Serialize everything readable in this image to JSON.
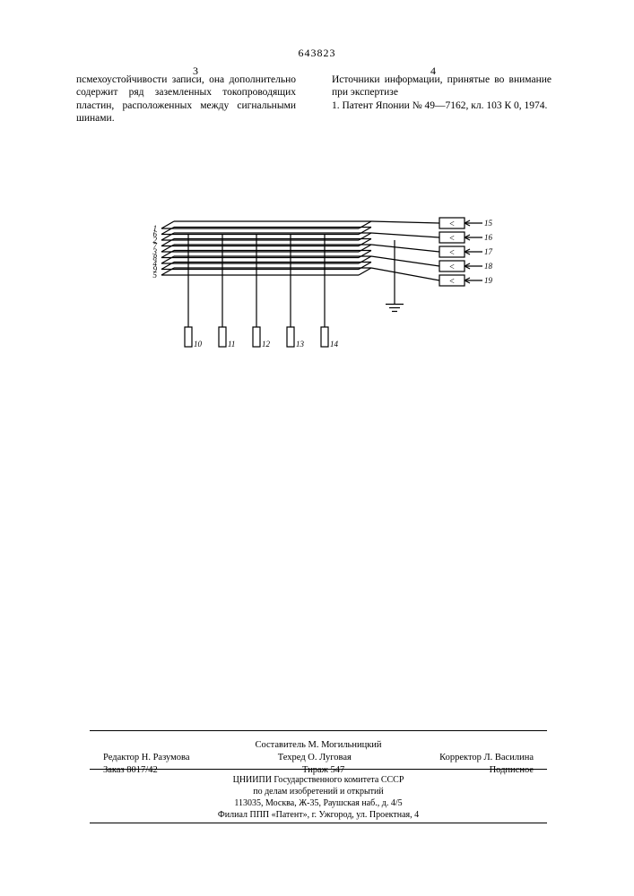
{
  "doc_number": "643823",
  "page_left": "3",
  "page_right": "4",
  "col_left": "псмехоустойчивости записи, она дополнительно содержит ряд заземленных токопроводящих пластин, расположенных между сигнальными шинами.",
  "col_right_hdr": "Источники информации, принятые во внимание при экспертизе",
  "col_right_ref": "1. Патент Японии № 49—7162, кл. 103 К 0, 1974.",
  "diagram": {
    "left_labels": [
      "1",
      "6",
      "2",
      "7",
      "3",
      "8",
      "4",
      "9",
      "5"
    ],
    "right_labels": [
      "15",
      "16",
      "17",
      "18",
      "19"
    ],
    "bottom_labels": [
      "10",
      "11",
      "12",
      "13",
      "14"
    ],
    "line_color": "#000000",
    "line_width": 1.2
  },
  "credits": {
    "compiler": "Составитель М. Могильницкий",
    "editor": "Редактор Н. Разумова",
    "tech": "Техред О. Луговая",
    "corrector": "Корректор Л. Василина",
    "order": "Заказ 8017/42",
    "tirage": "Тираж 547",
    "sub": "Подписное"
  },
  "imprint": {
    "l1": "ЦНИИПИ Государственного комитета СССР",
    "l2": "по делам изобретений и открытий",
    "l3": "113035, Москва, Ж-35, Раушская наб., д. 4/5",
    "l4": "Филиал ППП «Патент», г. Ужгород, ул. Проектная, 4"
  }
}
